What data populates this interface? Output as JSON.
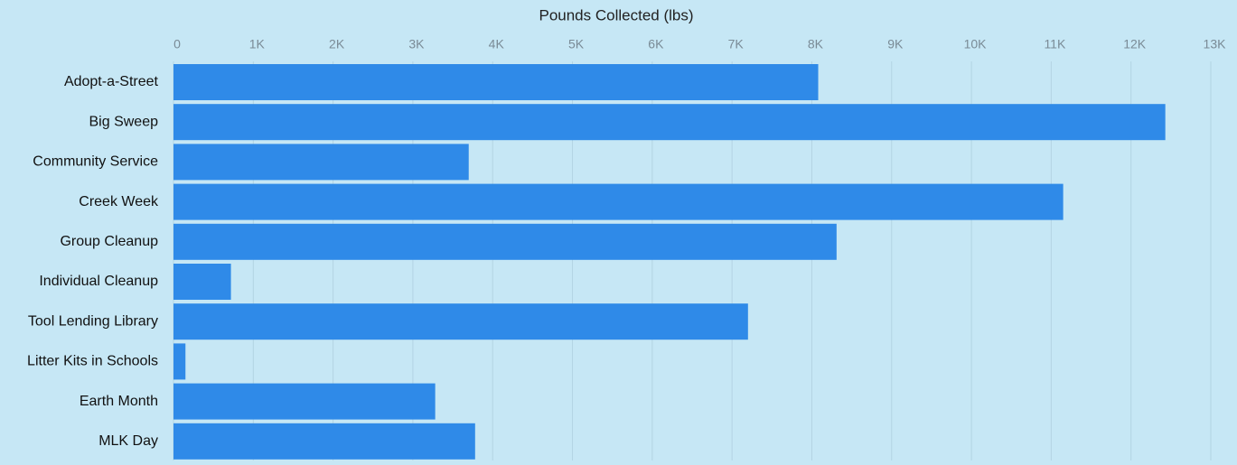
{
  "chart_data": {
    "type": "barh",
    "title": "Pounds Collected (lbs)",
    "categories": [
      "Adopt-a-Street",
      "Big Sweep",
      "Community Service",
      "Creek Week",
      "Group Cleanup",
      "Individual Cleanup",
      "Tool Lending Library",
      "Litter Kits in Schools",
      "Earth Month",
      "MLK Day"
    ],
    "values": [
      8080,
      12430,
      3700,
      11150,
      8310,
      720,
      7200,
      150,
      3280,
      3780
    ],
    "color": "#2f8ae8",
    "xlim": [
      0,
      13000
    ],
    "xticks": [
      0,
      {
        "value": 1000,
        "label": "1K"
      },
      {
        "value": 2000,
        "label": "2K"
      },
      {
        "value": 3000,
        "label": "3K"
      },
      {
        "value": 4000,
        "label": "4K"
      },
      {
        "value": 5000,
        "label": "5K"
      },
      {
        "value": 6000,
        "label": "6K"
      },
      {
        "value": 7000,
        "label": "7K"
      },
      {
        "value": 8000,
        "label": "8K"
      },
      {
        "value": 9000,
        "label": "9K"
      },
      {
        "value": 10000,
        "label": "10K"
      },
      {
        "value": 11000,
        "label": "11K"
      },
      {
        "value": 12000,
        "label": "12K"
      },
      {
        "value": 13000,
        "label": "13K"
      }
    ],
    "grid": true
  }
}
